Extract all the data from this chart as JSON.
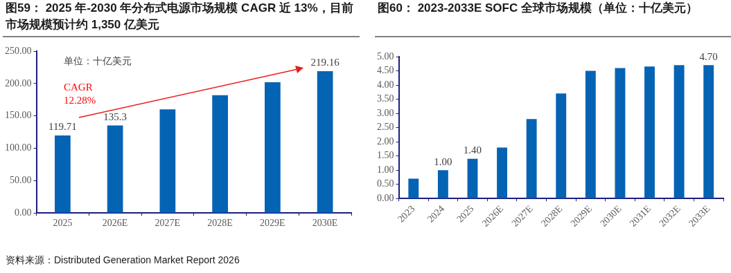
{
  "chart_data": [
    {
      "type": "bar",
      "title": "图59：  2025 年-2030 年分布式电源市场规模 CAGR 近 13%，目前市场规模预计约 1,350 亿美元",
      "categories": [
        "2025",
        "2026E",
        "2027E",
        "2028E",
        "2029E",
        "2030E"
      ],
      "values": [
        119.71,
        135.3,
        160,
        182,
        202,
        219.16
      ],
      "value_labels": [
        "119.71",
        "135.3",
        null,
        null,
        null,
        "219.16"
      ],
      "color": "#0563b4",
      "ylim": [
        0,
        250
      ],
      "yticks": [
        {
          "value": 0,
          "label": "0.00"
        },
        {
          "value": 50,
          "label": "50.00"
        },
        {
          "value": 100,
          "label": "100.00"
        },
        {
          "value": 150,
          "label": "150.00"
        },
        {
          "value": 200,
          "label": "200.00"
        },
        {
          "value": 250,
          "label": "250.00"
        }
      ],
      "grid": false,
      "legend": false,
      "annotations": [
        "单位：十亿美元",
        "CAGR 12.28%",
        "资料来源：Distributed Generation Market Report 2026"
      ]
    },
    {
      "type": "bar",
      "title": "图60：  2023-2033E SOFC 全球市场规模（单位：十亿美元）",
      "categories": [
        "2023",
        "2024",
        "2025",
        "2026E",
        "2027E",
        "2028E",
        "2029E",
        "2030E",
        "2031E",
        "2032E",
        "2033E"
      ],
      "values": [
        0.7,
        1.0,
        1.4,
        1.8,
        2.8,
        3.7,
        4.5,
        4.6,
        4.65,
        4.7,
        4.7
      ],
      "value_labels": [
        null,
        "1.00",
        "1.40",
        null,
        null,
        null,
        null,
        null,
        null,
        null,
        "4.70"
      ],
      "color": "#0563b4",
      "ylim": [
        0,
        5
      ],
      "yticks": [
        {
          "value": 0,
          "label": "0.00"
        },
        {
          "value": 0.5,
          "label": "0.50"
        },
        {
          "value": 1,
          "label": "1.00"
        },
        {
          "value": 1.5,
          "label": "1.50"
        },
        {
          "value": 2,
          "label": "2.00"
        },
        {
          "value": 2.5,
          "label": "2.50"
        },
        {
          "value": 3,
          "label": "3.00"
        },
        {
          "value": 3.5,
          "label": "3.50"
        },
        {
          "value": 4,
          "label": "4.00"
        },
        {
          "value": 4.5,
          "label": "4.50"
        },
        {
          "value": 5,
          "label": "5.00"
        }
      ],
      "grid": false,
      "legend": false
    }
  ]
}
